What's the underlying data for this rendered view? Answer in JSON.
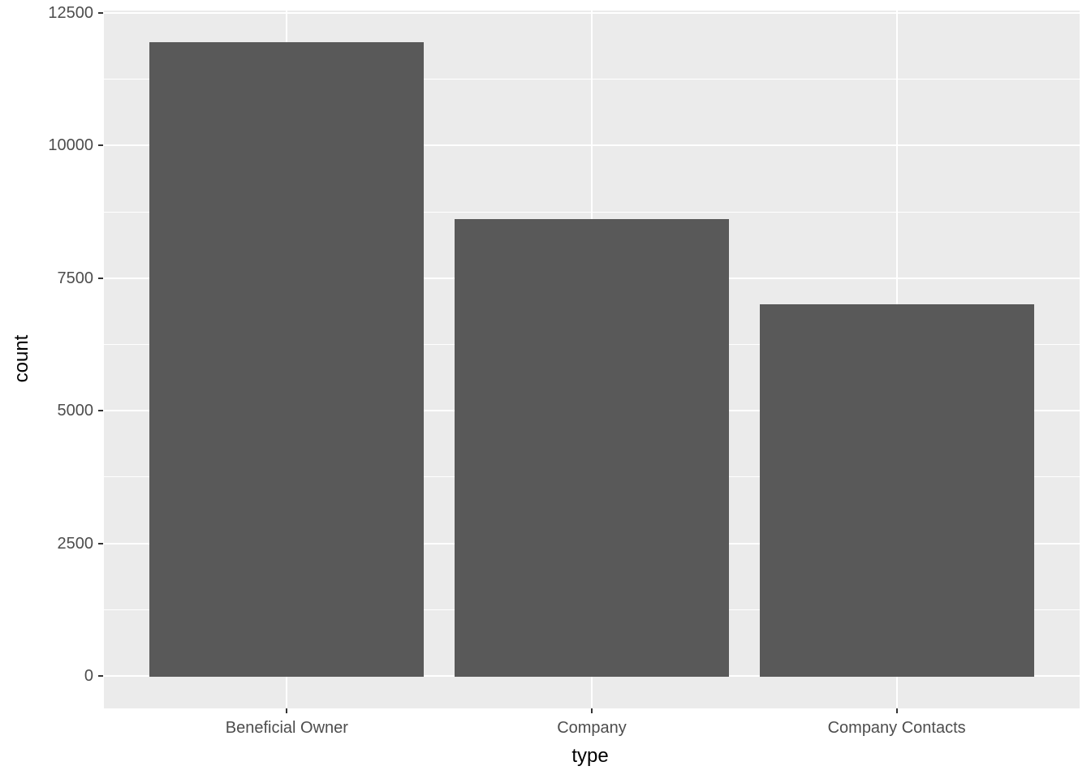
{
  "chart_data": {
    "type": "bar",
    "categories": [
      "Beneficial Owner",
      "Company",
      "Company Contacts"
    ],
    "values": [
      11950,
      8620,
      7000
    ],
    "title": "",
    "xlabel": "type",
    "ylabel": "count",
    "ylim": [
      0,
      12500
    ],
    "yticks": [
      0,
      2500,
      5000,
      7500,
      10000,
      12500
    ],
    "yticks_minor": [
      1250,
      3750,
      6250,
      8750,
      11250
    ],
    "legend": "none",
    "grid": "major-and-minor-horizontal, major-vertical-at-categories",
    "colors": {
      "bar_fill": "#595959",
      "panel_background": "#EBEBEB",
      "gridline": "#FFFFFF",
      "tick_label": "#4D4D4D",
      "tick_mark": "#333333",
      "axis_title": "#000000",
      "page_background": "#FFFFFF"
    }
  }
}
